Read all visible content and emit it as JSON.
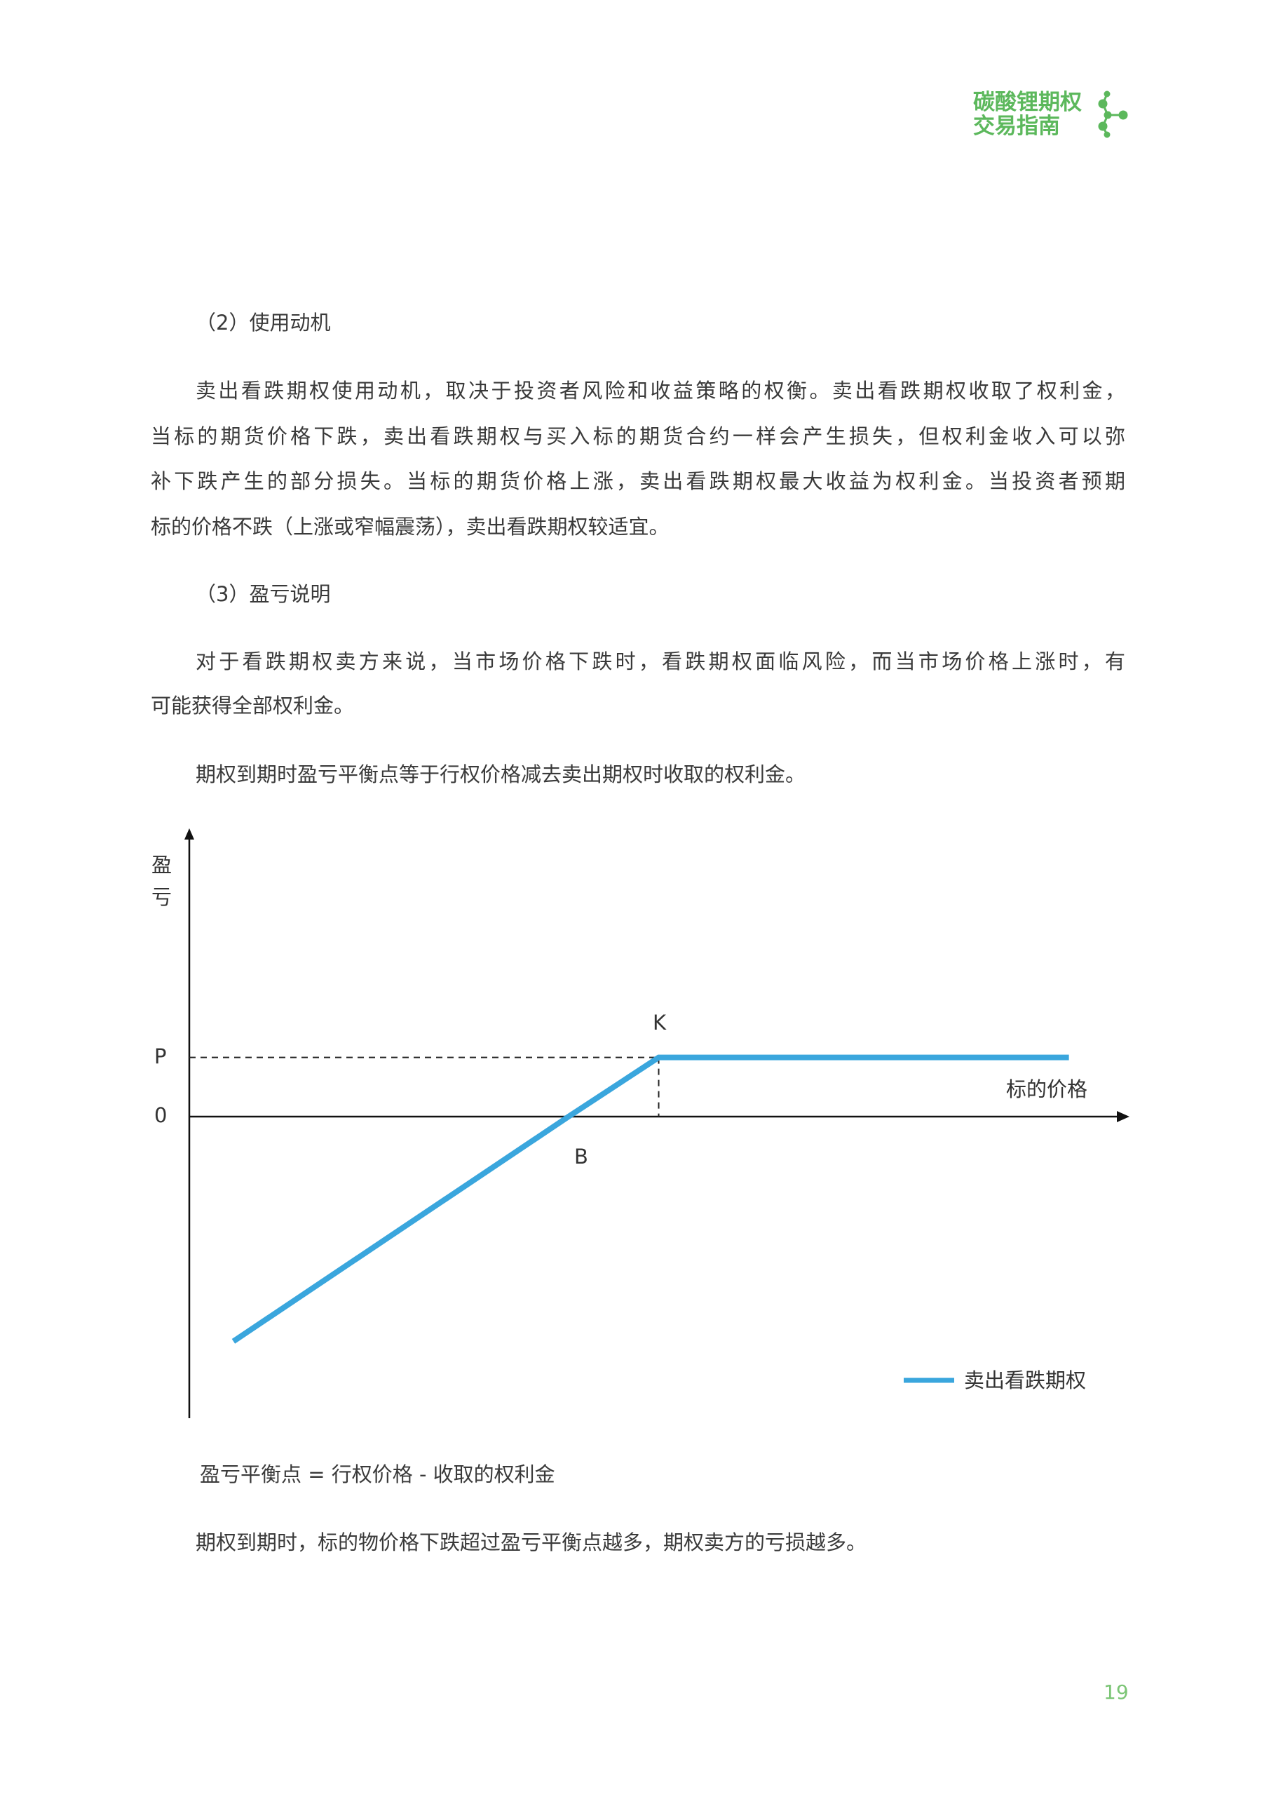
{
  "header": {
    "logo_line1": "碳酸锂期权",
    "logo_line2": "交易指南",
    "logo_icon": "molecule-icon",
    "brand_color": "#5cb85c"
  },
  "sections": {
    "motivation_heading": "（2）使用动机",
    "motivation_lines": [
      "卖出看跌期权使用动机，取决于投资者风险和收益策略的权衡。卖出看跌期权收取了权利金，",
      "当标的期货价格下跌，卖出看跌期权与买入标的期货合约一样会产生损失，但权利金收入可以弥",
      "补下跌产生的部分损失。当标的期货价格上涨，卖出看跌期权最大收益为权利金。当投资者预期",
      "标的价格不跌（上涨或窄幅震荡），卖出看跌期权较适宜。"
    ],
    "pnl_heading": "（3）盈亏说明",
    "pnl_lines": [
      "对于看跌期权卖方来说，当市场价格下跌时，看跌期权面临风险，而当市场价格上涨时，有",
      "可能获得全部权利金。"
    ],
    "breakeven_text": "期权到期时盈亏平衡点等于行权价格减去卖出期权时收取的权利金。",
    "formula": "盈亏平衡点 = 行权价格 - 收取的权利金",
    "conclusion": "期权到期时，标的物价格下跌超过盈亏平衡点越多，期权卖方的亏损越多。"
  },
  "chart_data": {
    "type": "line",
    "title": "",
    "ylabel": "盈亏",
    "xlabel": "标的价格",
    "y_tick_labels": [
      "P",
      "0"
    ],
    "point_labels": {
      "K": "K",
      "B": "B"
    },
    "legend": "top-right-bottom",
    "legend_position": "bottom-right",
    "grid": false,
    "series": [
      {
        "name": "卖出看跌期权",
        "color": "#3aa6dd",
        "points": [
          [
            4.7,
            -3.8
          ],
          [
            40.4,
            0
          ],
          [
            50,
            1
          ],
          [
            93.7,
            1
          ]
        ]
      }
    ],
    "markers": {
      "P": 1,
      "K": 50,
      "B": 40.4
    },
    "xlim": [
      0,
      100
    ],
    "ylim": [
      -5.1,
      4.85
    ]
  },
  "footer": {
    "page_number": "19"
  }
}
